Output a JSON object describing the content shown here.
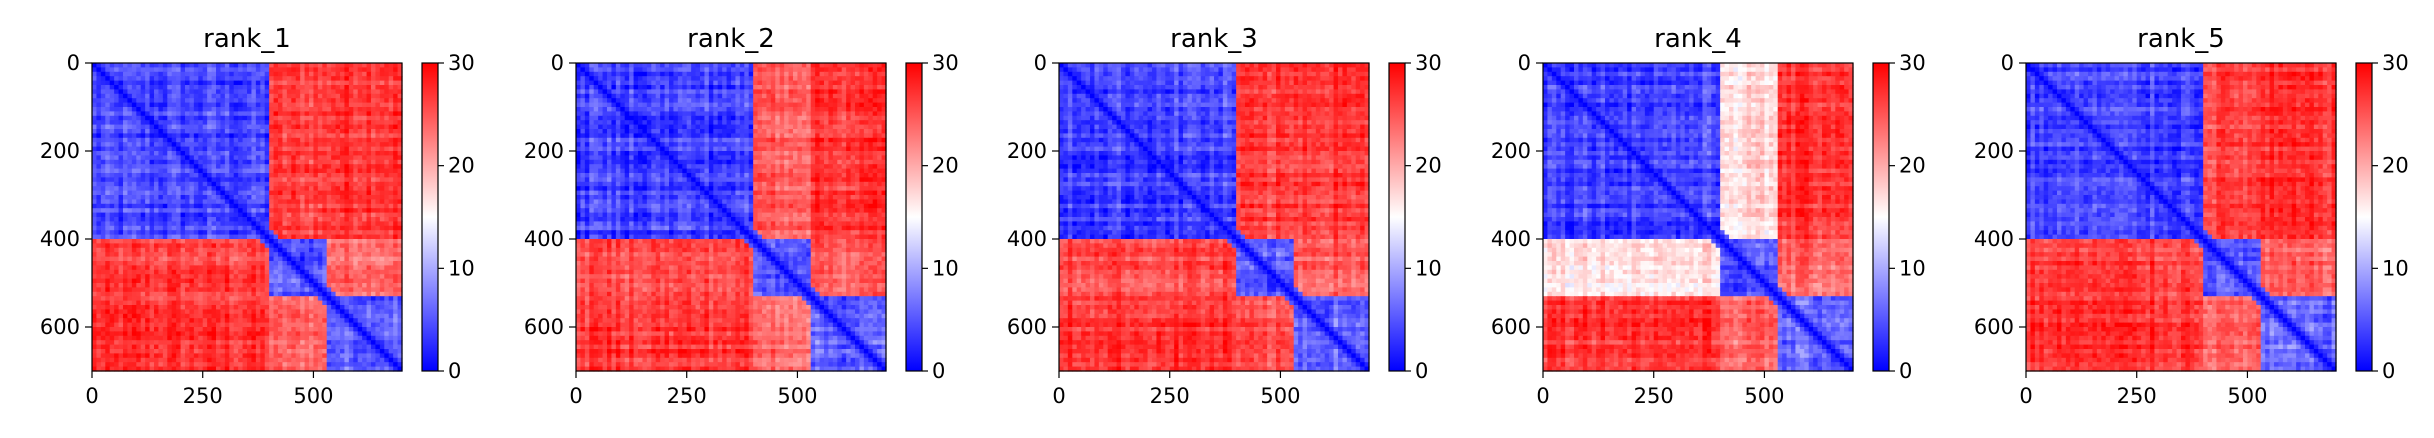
{
  "figure": {
    "colormap": {
      "name": "bwr",
      "low": "#0000ff",
      "mid": "#ffffff",
      "high": "#ff0000"
    },
    "axis_tick_color": "#000000"
  },
  "chart_data": [
    {
      "type": "heatmap",
      "title": "rank_1",
      "xlabel": "",
      "ylabel": "",
      "xlim": [
        0,
        700
      ],
      "ylim": [
        700,
        0
      ],
      "xticks": [
        0,
        250,
        500
      ],
      "yticks": [
        0,
        200,
        400,
        600
      ],
      "colorbar": {
        "range": [
          0,
          30
        ],
        "ticks": [
          0,
          10,
          20,
          30
        ]
      },
      "domains": [
        0,
        405,
        530,
        700
      ],
      "block_means": [
        [
          4,
          26,
          27
        ],
        [
          26,
          5,
          24
        ],
        [
          27,
          24,
          6
        ]
      ]
    },
    {
      "type": "heatmap",
      "title": "rank_2",
      "xlabel": "",
      "ylabel": "",
      "xlim": [
        0,
        700
      ],
      "ylim": [
        700,
        0
      ],
      "xticks": [
        0,
        250,
        500
      ],
      "yticks": [
        0,
        200,
        400,
        600
      ],
      "colorbar": {
        "range": [
          0,
          30
        ],
        "ticks": [
          0,
          10,
          20,
          30
        ]
      },
      "domains": [
        0,
        405,
        530,
        700
      ],
      "block_means": [
        [
          4,
          25,
          27
        ],
        [
          25,
          5,
          24
        ],
        [
          27,
          24,
          6
        ]
      ]
    },
    {
      "type": "heatmap",
      "title": "rank_3",
      "xlabel": "",
      "ylabel": "",
      "xlim": [
        0,
        700
      ],
      "ylim": [
        700,
        0
      ],
      "xticks": [
        0,
        250,
        500
      ],
      "yticks": [
        0,
        200,
        400,
        600
      ],
      "colorbar": {
        "range": [
          0,
          30
        ],
        "ticks": [
          0,
          10,
          20,
          30
        ]
      },
      "domains": [
        0,
        405,
        530,
        700
      ],
      "block_means": [
        [
          4,
          26,
          27
        ],
        [
          26,
          5,
          25
        ],
        [
          27,
          25,
          6
        ]
      ]
    },
    {
      "type": "heatmap",
      "title": "rank_4",
      "xlabel": "",
      "ylabel": "",
      "xlim": [
        0,
        700
      ],
      "ylim": [
        700,
        0
      ],
      "xticks": [
        0,
        250,
        500
      ],
      "yticks": [
        0,
        200,
        400,
        600
      ],
      "colorbar": {
        "range": [
          0,
          30
        ],
        "ticks": [
          0,
          10,
          20,
          30
        ]
      },
      "domains": [
        0,
        405,
        530,
        700
      ],
      "block_means": [
        [
          4,
          17,
          27
        ],
        [
          17,
          5,
          24
        ],
        [
          27,
          24,
          6
        ]
      ]
    },
    {
      "type": "heatmap",
      "title": "rank_5",
      "xlabel": "",
      "ylabel": "",
      "xlim": [
        0,
        700
      ],
      "ylim": [
        700,
        0
      ],
      "xticks": [
        0,
        250,
        500
      ],
      "yticks": [
        0,
        200,
        400,
        600
      ],
      "colorbar": {
        "range": [
          0,
          30
        ],
        "ticks": [
          0,
          10,
          20,
          30
        ]
      },
      "domains": [
        0,
        405,
        530,
        700
      ],
      "block_means": [
        [
          4,
          26,
          27
        ],
        [
          26,
          5,
          24
        ],
        [
          27,
          24,
          6
        ]
      ]
    }
  ]
}
